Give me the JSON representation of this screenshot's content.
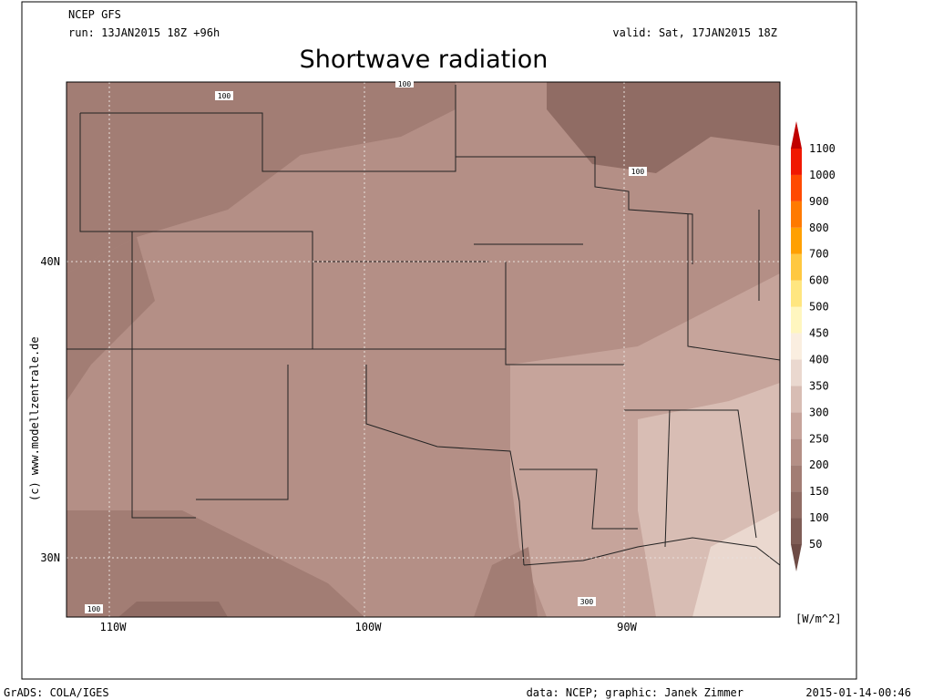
{
  "header": {
    "model": "NCEP GFS",
    "run": "run: 13JAN2015 18Z +96h",
    "valid": "valid: Sat, 17JAN2015 18Z",
    "title": "Shortwave radiation"
  },
  "map": {
    "lon_labels": [
      "110W",
      "100W",
      "90W"
    ],
    "lat_labels": [
      "40N",
      "30N"
    ],
    "contour_labels": [
      "100",
      "100",
      "100",
      "100",
      "300"
    ]
  },
  "credit": "(c) www.modellzentrale.de",
  "colorbar": {
    "levels": [
      "50",
      "100",
      "150",
      "200",
      "250",
      "300",
      "350",
      "400",
      "450",
      "500",
      "600",
      "700",
      "800",
      "900",
      "1000",
      "1100"
    ],
    "colors": [
      "#6e4c46",
      "#7f5d56",
      "#906c64",
      "#a27d74",
      "#b48f86",
      "#c6a49b",
      "#d8bdb4",
      "#ead8cf",
      "#faeee0",
      "#fff6bf",
      "#ffe680",
      "#ffc840",
      "#ffa000",
      "#ff7a00",
      "#ff4a00",
      "#f01800",
      "#c00000"
    ],
    "unit": "[W/m^2]"
  },
  "footer": {
    "left": "GrADS: COLA/IGES",
    "center": "data: NCEP; graphic: Janek Zimmer",
    "right": "2015-01-14-00:46"
  }
}
